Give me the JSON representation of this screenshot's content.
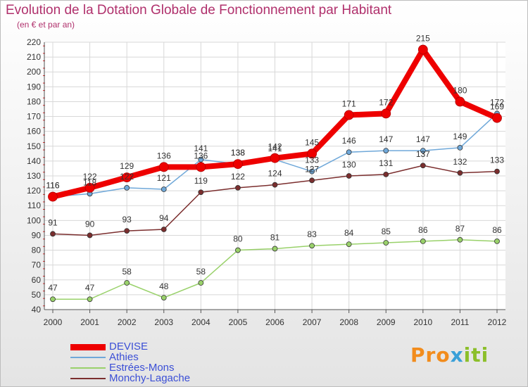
{
  "chart_data": {
    "type": "line",
    "title": "Evolution de la Dotation Globale de Fonctionnement par Habitant",
    "subtitle": "(en € et par an)",
    "x": [
      "2000",
      "2001",
      "2002",
      "2003",
      "2004",
      "2005",
      "2006",
      "2007",
      "2008",
      "2009",
      "2010",
      "2011",
      "2012"
    ],
    "ylim": [
      40,
      220
    ],
    "yticks": [
      40,
      50,
      60,
      70,
      80,
      90,
      100,
      110,
      120,
      130,
      140,
      150,
      160,
      170,
      180,
      190,
      200,
      210,
      220
    ],
    "grid": true,
    "legend_position": "bottom-left",
    "series": [
      {
        "name": "DEVISE",
        "color": "#ee0000",
        "values": [
          116,
          122,
          129,
          136,
          136,
          138,
          142,
          145,
          171,
          172,
          215,
          180,
          169
        ]
      },
      {
        "name": "Athies",
        "color": "#6fa8d9",
        "values": [
          116,
          118,
          122,
          121,
          141,
          138,
          141,
          133,
          146,
          147,
          147,
          149,
          172
        ]
      },
      {
        "name": "Estrées-Mons",
        "color": "#99d16a",
        "values": [
          47,
          47,
          58,
          48,
          58,
          80,
          81,
          83,
          84,
          85,
          86,
          87,
          86
        ]
      },
      {
        "name": "Monchy-Lagache",
        "color": "#7b2e2e",
        "values": [
          91,
          90,
          93,
          94,
          119,
          122,
          124,
          127,
          130,
          131,
          137,
          132,
          133
        ]
      }
    ]
  },
  "logo": {
    "parts": [
      "Pro",
      "x",
      "iti"
    ]
  }
}
